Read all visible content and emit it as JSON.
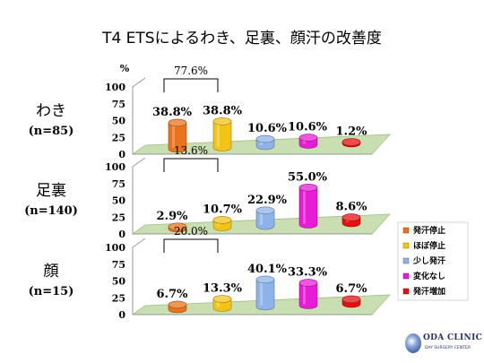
{
  "title": "T4 ETSによるわき、足裏、顔汗の改善度",
  "chart_data": {
    "type": "bar",
    "y_unit_label": "%",
    "ylim": [
      0,
      100
    ],
    "yticks": [
      "100",
      "75",
      "50",
      "25",
      "0"
    ],
    "series_names": [
      "発汗停止",
      "ほぼ停止",
      "少し発汗",
      "変化なし",
      "発汗増加"
    ],
    "colors": [
      "#e8731c",
      "#f2c418",
      "#8eb3e8",
      "#e81cd6",
      "#e81010"
    ],
    "panels": [
      {
        "label": "わき",
        "n": "(n=85)",
        "values": [
          38.8,
          38.8,
          10.6,
          10.6,
          1.2
        ],
        "value_labels": [
          "38.8%",
          "38.8%",
          "10.6%",
          "10.6%",
          "1.2%"
        ],
        "bracket_label": "77.6%"
      },
      {
        "label": "足裏",
        "n": "(n=140)",
        "values": [
          2.9,
          10.7,
          22.9,
          55.0,
          8.6
        ],
        "value_labels": [
          "2.9%",
          "10.7%",
          "22.9%",
          "55.0%",
          "8.6%"
        ],
        "bracket_label": "13.6%"
      },
      {
        "label": "顔",
        "n": "(n=15)",
        "values": [
          6.7,
          13.3,
          40.1,
          33.3,
          6.7
        ],
        "value_labels": [
          "6.7%",
          "13.3%",
          "40.1%",
          "33.3%",
          "6.7%"
        ],
        "bracket_label": "20.0%"
      }
    ]
  },
  "logo": {
    "name": "ODA CLINIC",
    "sub": "DAY SURGERY CENTER"
  }
}
